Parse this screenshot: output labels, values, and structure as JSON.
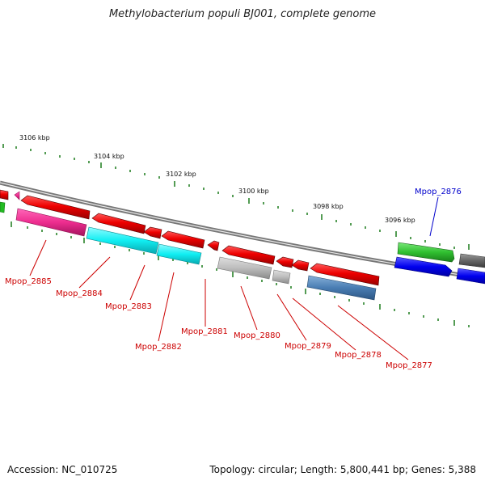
{
  "title": "Methylobacterium populi BJ001, complete genome",
  "footer": {
    "accession": "Accession: NC_010725",
    "summary": "Topology: circular; Length: 5,800,441 bp; Genes: 5,388"
  },
  "colors": {
    "backbone": "#777777",
    "tick": "#1a7a1a",
    "label_red": "#cc0000",
    "label_blue": "#0000cc"
  },
  "ticks": [
    "3106 kbp",
    "3104 kbp",
    "3102 kbp",
    "3100 kbp",
    "3098 kbp",
    "3096 kbp"
  ],
  "genes": [
    {
      "name": "Mpop_2885",
      "color": "#cc0000"
    },
    {
      "name": "Mpop_2884",
      "color": "#cc0000"
    },
    {
      "name": "Mpop_2883",
      "color": "#cc0000"
    },
    {
      "name": "Mpop_2882",
      "color": "#cc0000"
    },
    {
      "name": "Mpop_2881",
      "color": "#cc0000"
    },
    {
      "name": "Mpop_2880",
      "color": "#cc0000"
    },
    {
      "name": "Mpop_2879",
      "color": "#cc0000"
    },
    {
      "name": "Mpop_2878",
      "color": "#cc0000"
    },
    {
      "name": "Mpop_2877",
      "color": "#cc0000"
    },
    {
      "name": "Mpop_2876",
      "color": "#0000cc"
    }
  ]
}
